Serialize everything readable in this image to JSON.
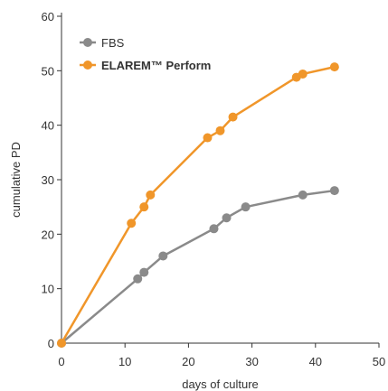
{
  "chart_data": {
    "type": "line",
    "title": "",
    "xlabel": "days of culture",
    "ylabel": "cumulative PD",
    "xlim": [
      0,
      50
    ],
    "ylim": [
      0,
      60
    ],
    "x_ticks": [
      "0",
      "10",
      "20",
      "30",
      "40",
      "50"
    ],
    "y_ticks": [
      "0",
      "10",
      "20",
      "30",
      "40",
      "50",
      "60"
    ],
    "grid": false,
    "legend_position": "top-left",
    "series": [
      {
        "name": "FBS",
        "color": "#8a8a8a",
        "bold_label": false,
        "points": [
          {
            "x": 0,
            "y": 0
          },
          {
            "x": 12,
            "y": 11.8
          },
          {
            "x": 13,
            "y": 13
          },
          {
            "x": 16,
            "y": 16
          },
          {
            "x": 24,
            "y": 21
          },
          {
            "x": 26,
            "y": 23
          },
          {
            "x": 29,
            "y": 25
          },
          {
            "x": 38,
            "y": 27.2
          },
          {
            "x": 43,
            "y": 28
          }
        ]
      },
      {
        "name": "ELAREM™ Perform",
        "color": "#f0962a",
        "bold_label": true,
        "points": [
          {
            "x": 0,
            "y": 0
          },
          {
            "x": 11,
            "y": 22
          },
          {
            "x": 13,
            "y": 25
          },
          {
            "x": 14,
            "y": 27.2
          },
          {
            "x": 23,
            "y": 37.7
          },
          {
            "x": 25,
            "y": 39
          },
          {
            "x": 27,
            "y": 41.5
          },
          {
            "x": 37,
            "y": 48.8
          },
          {
            "x": 38,
            "y": 49.4
          },
          {
            "x": 43,
            "y": 50.7
          }
        ]
      }
    ]
  }
}
